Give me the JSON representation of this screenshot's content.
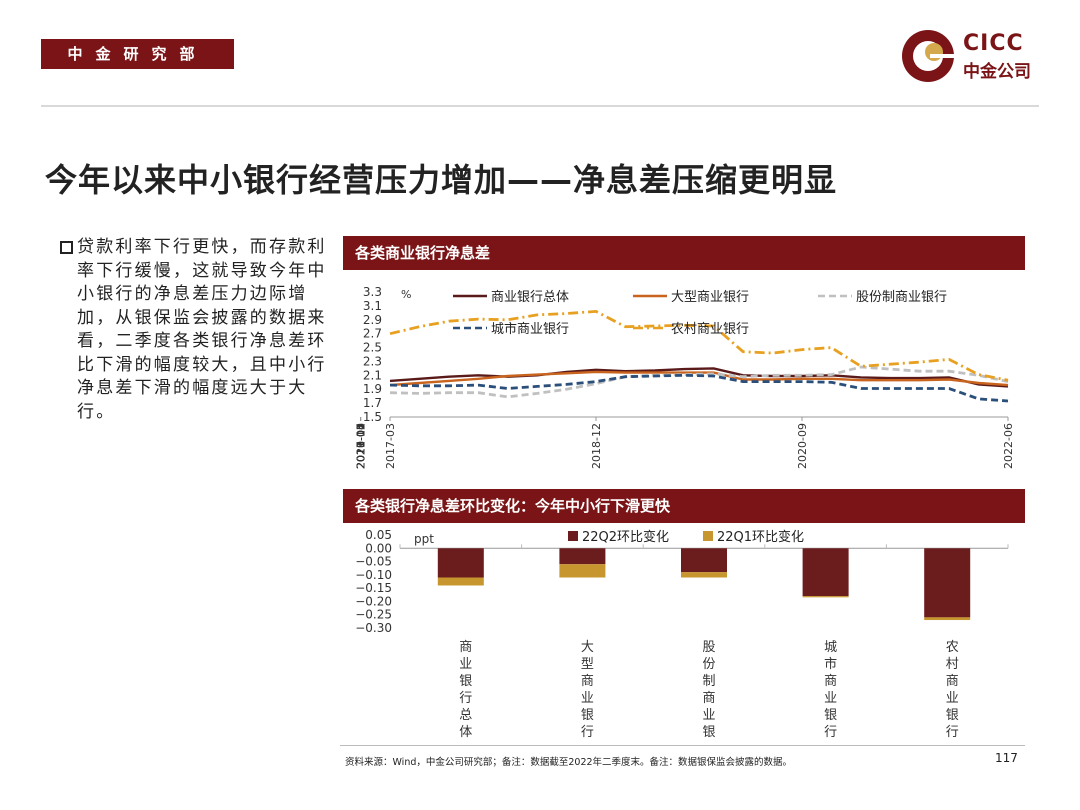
{
  "header": {
    "dept_label": "中金研究部",
    "logo_en": "CICC",
    "logo_cn": "中金公司",
    "brand_color": "#7a1416"
  },
  "page_title": "今年以来中小银行经营压力增加——净息差压缩更明显",
  "bullet_text": "贷款利率下行更快，而存款利率下行缓慢，这就导致今年中小银行的净息差压力边际增加，从银保监会披露的数据来看，二季度各类银行净息差环比下滑的幅度较大，且中小行净息差下滑的幅度远大于大行。",
  "footer": {
    "source": "资料来源：Wind，中金公司研究部；备注：数据截至2022年二季度末。备注：数据银保监会披露的数据。",
    "page_number": "117"
  },
  "chart_data": [
    {
      "type": "line",
      "title": "各类商业银行净息差",
      "unit_label": "%",
      "ylim": [
        1.5,
        3.3
      ],
      "yticks": [
        "3.3",
        "3.1",
        "2.9",
        "2.7",
        "2.5",
        "2.3",
        "2.1",
        "1.9",
        "1.7",
        "1.5"
      ],
      "xticks": [
        "2017-03",
        "2017-10",
        "2018-05",
        "2018-12",
        "2019-07",
        "2020-02",
        "2020-09",
        "2021-04",
        "2021-11",
        "2022-06"
      ],
      "x": [
        "2017-03",
        "2017-06",
        "2017-09",
        "2017-12",
        "2018-03",
        "2018-06",
        "2018-09",
        "2018-12",
        "2019-03",
        "2019-06",
        "2019-09",
        "2019-12",
        "2020-03",
        "2020-06",
        "2020-09",
        "2020-12",
        "2021-03",
        "2021-06",
        "2021-09",
        "2021-12",
        "2022-03",
        "2022-06"
      ],
      "series": [
        {
          "name": "商业银行总体",
          "color": "#5a1a1a",
          "dash": "solid",
          "values": [
            2.02,
            2.05,
            2.08,
            2.1,
            2.08,
            2.1,
            2.15,
            2.18,
            2.16,
            2.17,
            2.19,
            2.2,
            2.1,
            2.09,
            2.09,
            2.1,
            2.07,
            2.06,
            2.06,
            2.07,
            1.97,
            1.94
          ]
        },
        {
          "name": "大型商业银行",
          "color": "#c8641e",
          "dash": "solid",
          "values": [
            1.96,
            1.99,
            2.02,
            2.05,
            2.09,
            2.11,
            2.13,
            2.15,
            2.14,
            2.14,
            2.14,
            2.14,
            2.04,
            2.04,
            2.05,
            2.05,
            2.03,
            2.03,
            2.03,
            2.04,
            1.99,
            1.96
          ]
        },
        {
          "name": "股份制商业银行",
          "color": "#c0c0c0",
          "dash": "dash",
          "values": [
            1.85,
            1.84,
            1.85,
            1.85,
            1.79,
            1.84,
            1.9,
            1.98,
            2.08,
            2.1,
            2.11,
            2.12,
            2.08,
            2.1,
            2.1,
            2.11,
            2.22,
            2.19,
            2.16,
            2.16,
            2.1,
            2.01
          ]
        },
        {
          "name": "城市商业银行",
          "color": "#2a4f7a",
          "dash": "dash",
          "values": [
            1.96,
            1.95,
            1.95,
            1.96,
            1.91,
            1.94,
            1.97,
            2.01,
            2.08,
            2.09,
            2.1,
            2.09,
            2.01,
            2.01,
            2.01,
            2.0,
            1.91,
            1.91,
            1.91,
            1.91,
            1.76,
            1.73
          ]
        },
        {
          "name": "农村商业银行",
          "color": "#e8a020",
          "dash": "dashdot",
          "values": [
            2.7,
            2.8,
            2.88,
            2.91,
            2.9,
            2.97,
            2.99,
            3.02,
            2.8,
            2.81,
            2.82,
            2.81,
            2.44,
            2.42,
            2.47,
            2.5,
            2.23,
            2.26,
            2.29,
            2.33,
            2.11,
            2.03
          ]
        }
      ]
    },
    {
      "type": "bar",
      "title": "各类银行净息差环比变化：今年中小行下滑更快",
      "unit_label": "ppt",
      "ylim": [
        -0.3,
        0.05
      ],
      "yticks": [
        "0.05",
        "0.00",
        "−0.05",
        "−0.10",
        "−0.15",
        "−0.20",
        "−0.25",
        "−0.30"
      ],
      "categories": [
        "商业银行总体",
        "大型商业银行",
        "股份制商业银行",
        "城市商业银行",
        "农村商业银行"
      ],
      "series": [
        {
          "name": "22Q2环比变化",
          "color": "#6b1c1c",
          "values": [
            -0.11,
            -0.06,
            -0.09,
            -0.18,
            -0.26
          ]
        },
        {
          "name": "22Q1环比变化",
          "color": "#c8962e",
          "values": [
            -0.03,
            -0.05,
            -0.02,
            -0.0,
            -0.01
          ]
        }
      ]
    }
  ]
}
